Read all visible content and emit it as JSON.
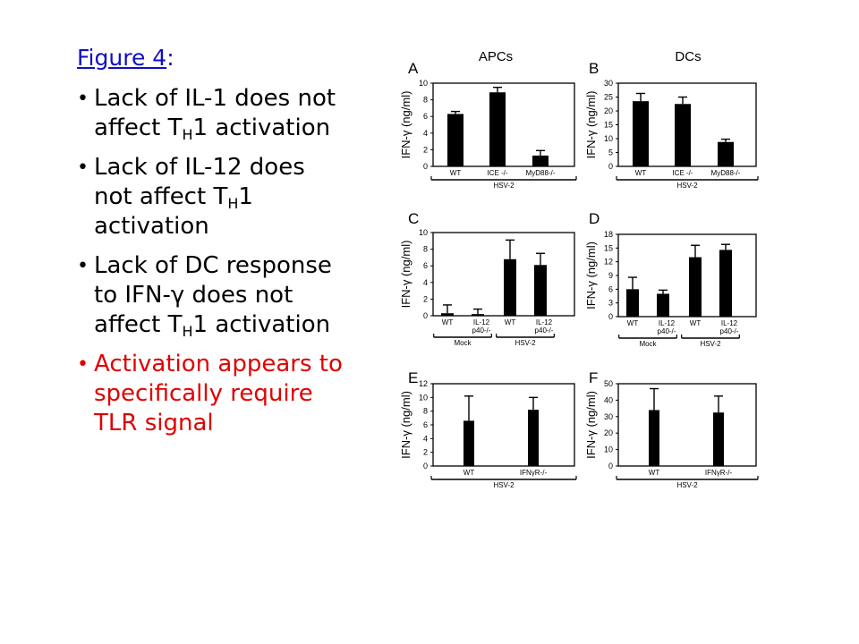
{
  "slide": {
    "title_link": "Figure 4",
    "title_colon": ":",
    "bullets": [
      {
        "pre": "Lack of IL-1 does not affect T",
        "sub": "H",
        "post": "1 activation",
        "color": "#000000"
      },
      {
        "pre": "Lack of IL-12 does not affect T",
        "sub": "H",
        "post": "1 activation",
        "color": "#000000"
      },
      {
        "pre": "Lack of DC response to IFN-γ does not affect T",
        "sub": "H",
        "post": "1 activation",
        "color": "#000000"
      },
      {
        "pre": "Activation appears to specifically require TLR signal",
        "sub": "",
        "post": "",
        "color": "#e00000"
      }
    ]
  },
  "figure": {
    "column_headers": [
      "APCs",
      "DCs"
    ],
    "y_axis_label": "IFN-γ (ng/ml)"
  },
  "chart_data": [
    {
      "type": "bar",
      "panel": "A",
      "categories": [
        "WT",
        "ICE -/-",
        "MyD88-/-"
      ],
      "values": [
        6.3,
        8.9,
        1.3
      ],
      "errors": [
        0.3,
        0.6,
        0.6
      ],
      "ylim": [
        0,
        10
      ],
      "yticks": [
        0,
        2,
        4,
        6,
        8,
        10
      ],
      "ylabel": "IFN-γ (ng/ml)",
      "groups": [
        {
          "label": "HSV-2",
          "span": [
            0,
            2
          ]
        }
      ]
    },
    {
      "type": "bar",
      "panel": "B",
      "categories": [
        "WT",
        "ICE -/-",
        "MyD88-/-"
      ],
      "values": [
        23.5,
        22.5,
        8.8
      ],
      "errors": [
        2.8,
        2.5,
        1.0
      ],
      "ylim": [
        0,
        30
      ],
      "yticks": [
        0,
        5,
        10,
        15,
        20,
        25,
        30
      ],
      "ylabel": "IFN-γ (ng/ml)",
      "groups": [
        {
          "label": "HSV-2",
          "span": [
            0,
            2
          ]
        }
      ]
    },
    {
      "type": "bar",
      "panel": "C",
      "categories": [
        "WT",
        "IL-12 p40-/-",
        "WT",
        "IL-12 p40-/-"
      ],
      "values": [
        0.3,
        0.2,
        6.8,
        6.1
      ],
      "errors": [
        1.0,
        0.6,
        2.3,
        1.4
      ],
      "ylim": [
        0,
        10
      ],
      "yticks": [
        0,
        2,
        4,
        6,
        8,
        10
      ],
      "ylabel": "IFN-γ (ng/ml)",
      "groups": [
        {
          "label": "Mock",
          "span": [
            0,
            1
          ]
        },
        {
          "label": "HSV-2",
          "span": [
            2,
            3
          ]
        }
      ]
    },
    {
      "type": "bar",
      "panel": "D",
      "categories": [
        "WT",
        "IL-12 p40-/-",
        "WT",
        "IL-12 p40-/-"
      ],
      "values": [
        6.0,
        5.0,
        13.0,
        14.6
      ],
      "errors": [
        2.6,
        0.8,
        2.6,
        1.2
      ],
      "ylim": [
        0,
        18
      ],
      "yticks": [
        0,
        3,
        6,
        9,
        12,
        15,
        18
      ],
      "ylabel": "IFN-γ (ng/ml)",
      "groups": [
        {
          "label": "Mock",
          "span": [
            0,
            1
          ]
        },
        {
          "label": "HSV-2",
          "span": [
            2,
            3
          ]
        }
      ]
    },
    {
      "type": "bar",
      "panel": "E",
      "categories": [
        "WT",
        "IFNγR-/-"
      ],
      "values": [
        6.6,
        8.2
      ],
      "errors": [
        3.6,
        1.8
      ],
      "ylim": [
        0,
        12
      ],
      "yticks": [
        0,
        2,
        4,
        6,
        8,
        10,
        12
      ],
      "ylabel": "IFN-γ (ng/ml)",
      "groups": [
        {
          "label": "HSV-2",
          "span": [
            0,
            1
          ]
        }
      ]
    },
    {
      "type": "bar",
      "panel": "F",
      "categories": [
        "WT",
        "IFNγR-/-"
      ],
      "values": [
        34,
        32.5
      ],
      "errors": [
        13,
        10
      ],
      "ylim": [
        0,
        50
      ],
      "yticks": [
        0,
        10,
        20,
        30,
        40,
        50
      ],
      "ylabel": "IFN-γ (ng/ml)",
      "groups": [
        {
          "label": "HSV-2",
          "span": [
            0,
            1
          ]
        }
      ]
    }
  ]
}
